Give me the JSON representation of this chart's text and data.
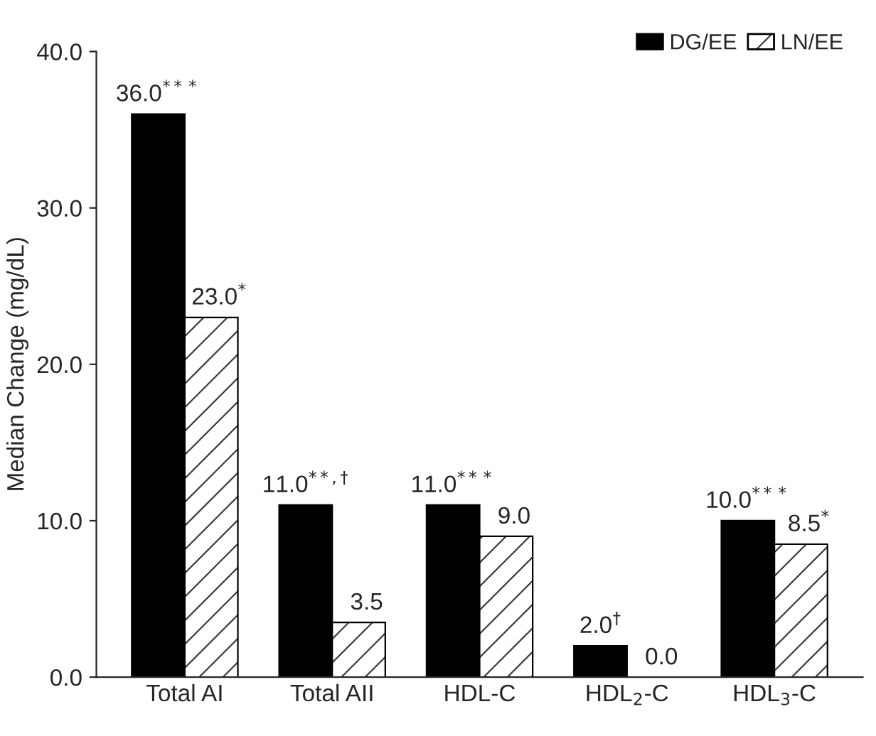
{
  "chart_data": {
    "type": "bar",
    "ylabel": "Median Change (mg/dL)",
    "categories": [
      "Total AI",
      "Total AII",
      "HDL-C",
      "HDL$_{2}$-C",
      "HDL$_{3}$-C"
    ],
    "series": [
      {
        "name": "DG/EE",
        "color": "#000000",
        "values": [
          36.0,
          11.0,
          11.0,
          2.0,
          10.0
        ],
        "value_labels": [
          "36.0$^{***}$",
          "11.0$^{**,†}$",
          "11.0$^{***}$",
          "2.0$^{†}$",
          "10.0$^{***}$"
        ]
      },
      {
        "name": "LN/EE",
        "color": "#000000",
        "values": [
          23.0,
          3.5,
          9.0,
          0.0,
          8.5
        ],
        "value_labels": [
          "23.0$^{*}$",
          "3.5",
          "9.0",
          "0.0",
          "8.5$^{*}$"
        ]
      }
    ],
    "ylim": [
      0,
      40
    ],
    "yticks": [
      {
        "value": 0,
        "label": "0.0"
      },
      {
        "value": 10,
        "label": "10.0"
      },
      {
        "value": 20,
        "label": "20.0"
      },
      {
        "value": 30,
        "label": "30.0"
      },
      {
        "value": 40,
        "label": "40.0"
      }
    ],
    "legend": "top right",
    "grid": false
  }
}
